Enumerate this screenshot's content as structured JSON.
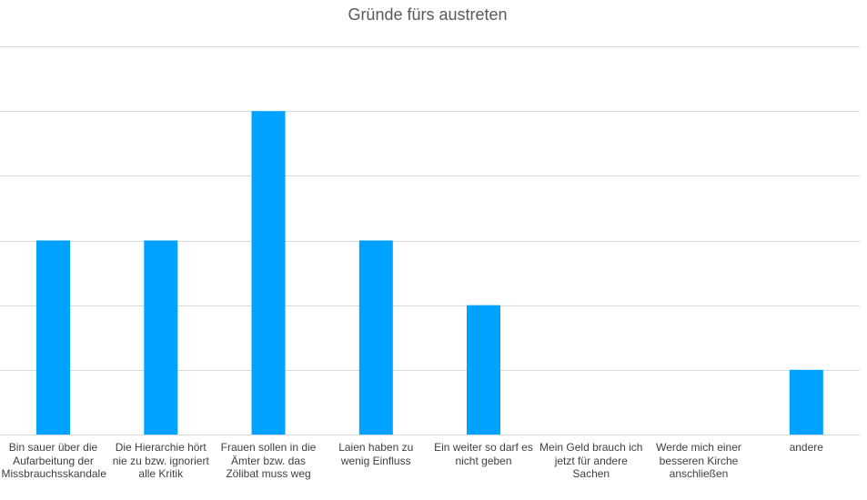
{
  "chart_data": {
    "type": "bar",
    "title": "Gründe fürs austreten",
    "xlabel": "",
    "ylabel": "",
    "categories": [
      "Bin sauer über die Aufarbeitung der Missbrauchsskandale",
      "Die Hierarchie hört nie zu bzw. ignoriert alle Kritik",
      "Frauen sollen in die Ämter bzw. das Zölibat muss weg",
      "Laien haben zu wenig Einfluss",
      "Ein weiter so darf es nicht geben",
      "Mein Geld brauch ich jetzt für andere Sachen",
      "Werde mich einer besseren Kirche anschließen",
      "andere"
    ],
    "values": [
      3,
      3,
      5,
      3,
      2,
      0,
      0,
      1
    ],
    "ylim": [
      0,
      6
    ],
    "grid": true,
    "bar_color": "#00a2ff",
    "grid_color": "#d9d9d9",
    "legend": "none"
  }
}
